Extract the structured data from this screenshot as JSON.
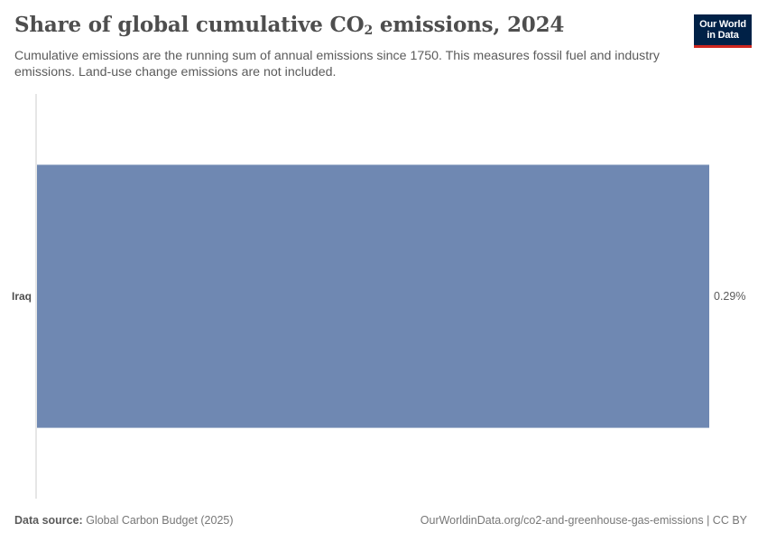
{
  "header": {
    "title_main": "Share of global cumulative CO",
    "title_sub": "2",
    "title_tail": " emissions, 2024",
    "subtitle": "Cumulative emissions are the running sum of annual emissions since 1750. This measures fossil fuel and industry emissions. Land-use change emissions are not included."
  },
  "logo": {
    "line1": "Our World",
    "line2": "in Data"
  },
  "chart_data": {
    "type": "bar",
    "orientation": "horizontal",
    "categories": [
      "Iraq"
    ],
    "values": [
      0.29
    ],
    "value_labels": [
      "0.29%"
    ],
    "unit": "%",
    "xlim": [
      0,
      0.29
    ],
    "grid": false,
    "colors": {
      "bar": "#6f88b2",
      "axis": "#cccccc",
      "label": "#4e4e4e",
      "value_label": "#5b5b5b"
    }
  },
  "footer": {
    "source_label": "Data source:",
    "source_value": "Global Carbon Budget (2025)",
    "link_text": "OurWorldinData.org/co2-and-greenhouse-gas-emissions",
    "license": "CC BY"
  }
}
